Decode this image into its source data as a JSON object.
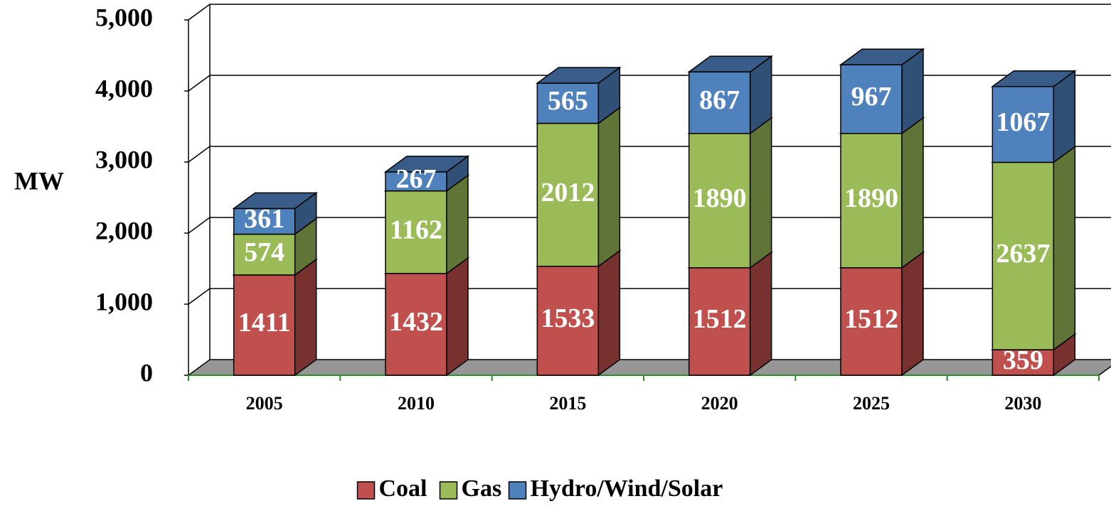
{
  "chart_data": {
    "type": "bar3d_stacked",
    "y_label": "MW",
    "categories": [
      "2005",
      "2010",
      "2015",
      "2020",
      "2025",
      "2030"
    ],
    "series": [
      {
        "name": "Coal",
        "color": "#c0504d",
        "values": [
          1411,
          1432,
          1533,
          1512,
          1512,
          359
        ]
      },
      {
        "name": "Gas",
        "color": "#9bbb59",
        "values": [
          574,
          1162,
          2012,
          1890,
          1890,
          2637
        ]
      },
      {
        "name": "Hydro/Wind/Solar",
        "color": "#4f81bd",
        "values": [
          361,
          267,
          565,
          867,
          967,
          1067
        ]
      }
    ],
    "ylim": [
      0,
      5000
    ],
    "yticks": [
      0,
      {
        "value": 1000,
        "label": "1,000"
      },
      {
        "value": 2000,
        "label": "2,000"
      },
      {
        "value": 3000,
        "label": "3,000"
      },
      {
        "value": 4000,
        "label": "4,000"
      },
      {
        "value": 5000,
        "label": "5,000"
      }
    ],
    "grid": true,
    "legend": "bottom"
  }
}
